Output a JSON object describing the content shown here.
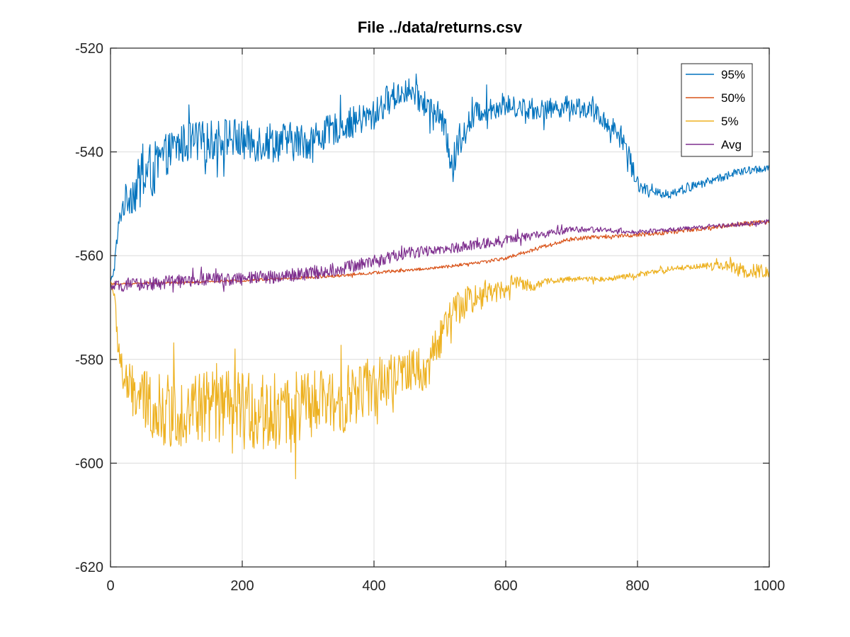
{
  "chart_data": {
    "type": "line",
    "title": "File ../data/returns.csv",
    "xlabel": "",
    "ylabel": "",
    "xlim": [
      0,
      1000
    ],
    "ylim": [
      -620,
      -520
    ],
    "xticks": [
      0,
      200,
      400,
      600,
      800,
      1000
    ],
    "yticks": [
      -620,
      -600,
      -580,
      -560,
      -540,
      -520
    ],
    "xtick_labels": [
      "0",
      "200",
      "400",
      "600",
      "800",
      "1000"
    ],
    "ytick_labels": [
      "-620",
      "-600",
      "-580",
      "-560",
      "-540",
      "-520"
    ],
    "grid": true,
    "legend_position": "top-right",
    "series": [
      {
        "name": "95%",
        "color": "#0072BD",
        "x": [
          0,
          5,
          10,
          15,
          20,
          30,
          40,
          50,
          60,
          70,
          80,
          100,
          120,
          150,
          180,
          200,
          250,
          300,
          350,
          400,
          420,
          450,
          470,
          500,
          510,
          520,
          530,
          560,
          600,
          650,
          700,
          730,
          760,
          780,
          790,
          800,
          820,
          850,
          900,
          950,
          1000
        ],
        "y": [
          -565,
          -563,
          -557,
          -552,
          -550,
          -548,
          -547,
          -545,
          -544,
          -543,
          -541,
          -539,
          -538,
          -538,
          -537,
          -538,
          -538,
          -538,
          -535,
          -533,
          -530,
          -528,
          -530,
          -533,
          -537,
          -543,
          -537,
          -532,
          -531,
          -532,
          -531,
          -532,
          -535,
          -538,
          -542,
          -546,
          -548,
          -548,
          -546,
          -544,
          -543
        ],
        "amplitude": [
          0,
          1,
          2,
          2,
          3,
          4,
          5,
          6,
          6,
          5,
          4,
          4,
          4,
          4,
          4,
          4,
          4,
          3.5,
          3,
          3,
          3,
          2.5,
          2.5,
          2.5,
          3,
          4,
          3,
          2.5,
          2,
          2,
          2,
          2,
          2,
          2.5,
          2.5,
          1.5,
          1,
          1,
          0.8,
          0.8,
          0.8
        ]
      },
      {
        "name": "50%",
        "color": "#D95319",
        "x": [
          0,
          50,
          100,
          150,
          200,
          250,
          300,
          350,
          400,
          450,
          500,
          550,
          600,
          650,
          700,
          750,
          800,
          850,
          900,
          950,
          1000
        ],
        "y": [
          -565.5,
          -565.3,
          -565.2,
          -565,
          -564.8,
          -564.5,
          -564.2,
          -563.8,
          -563.3,
          -562.8,
          -562.3,
          -561.5,
          -560.5,
          -558.5,
          -556.8,
          -556.3,
          -556,
          -555.5,
          -554.8,
          -554,
          -553.5
        ],
        "amplitude": [
          0.2,
          0.2,
          0.2,
          0.2,
          0.2,
          0.25,
          0.3,
          0.3,
          0.3,
          0.3,
          0.3,
          0.3,
          0.35,
          0.4,
          0.4,
          0.4,
          0.4,
          0.4,
          0.4,
          0.45,
          0.5
        ]
      },
      {
        "name": "5%",
        "color": "#EDB120",
        "x": [
          0,
          5,
          10,
          15,
          20,
          30,
          50,
          80,
          100,
          150,
          200,
          250,
          300,
          350,
          380,
          400,
          430,
          460,
          480,
          500,
          520,
          550,
          580,
          600,
          620,
          640,
          660,
          700,
          750,
          800,
          850,
          900,
          940,
          960,
          1000
        ],
        "y": [
          -565,
          -567,
          -575,
          -580,
          -584,
          -586,
          -588,
          -590,
          -590,
          -589,
          -590,
          -590,
          -589,
          -588,
          -586,
          -585,
          -584,
          -582,
          -582,
          -576,
          -571,
          -568,
          -567,
          -566,
          -565,
          -566,
          -565,
          -564.5,
          -564.5,
          -563.8,
          -562.5,
          -562,
          -562,
          -563,
          -563
        ],
        "amplitude": [
          0.5,
          1.5,
          3,
          4,
          4.5,
          5,
          6,
          7,
          7,
          7.5,
          7.5,
          7.5,
          7,
          6.5,
          6,
          5.5,
          5,
          4.5,
          4,
          4,
          3.5,
          3,
          2.5,
          2,
          1.5,
          1,
          0.6,
          0.5,
          0.5,
          0.5,
          0.5,
          0.5,
          1,
          1.5,
          1.2
        ]
      },
      {
        "name": "Avg",
        "color": "#7E2F8E",
        "x": [
          0,
          50,
          100,
          150,
          200,
          250,
          300,
          350,
          400,
          450,
          500,
          550,
          600,
          650,
          700,
          750,
          800,
          850,
          900,
          950,
          1000
        ],
        "y": [
          -566,
          -565.5,
          -565,
          -564.5,
          -564.5,
          -564,
          -563.5,
          -562.5,
          -561,
          -559.5,
          -559,
          -558,
          -557,
          -556,
          -555,
          -555,
          -555.5,
          -555,
          -554.5,
          -554,
          -553.5
        ],
        "amplitude": [
          1,
          1.3,
          1.3,
          1.3,
          1.3,
          1.3,
          1.3,
          1.3,
          1.2,
          1.2,
          1,
          1,
          1,
          0.8,
          0.6,
          0.5,
          0.4,
          0.4,
          0.4,
          0.4,
          0.4
        ]
      }
    ]
  }
}
